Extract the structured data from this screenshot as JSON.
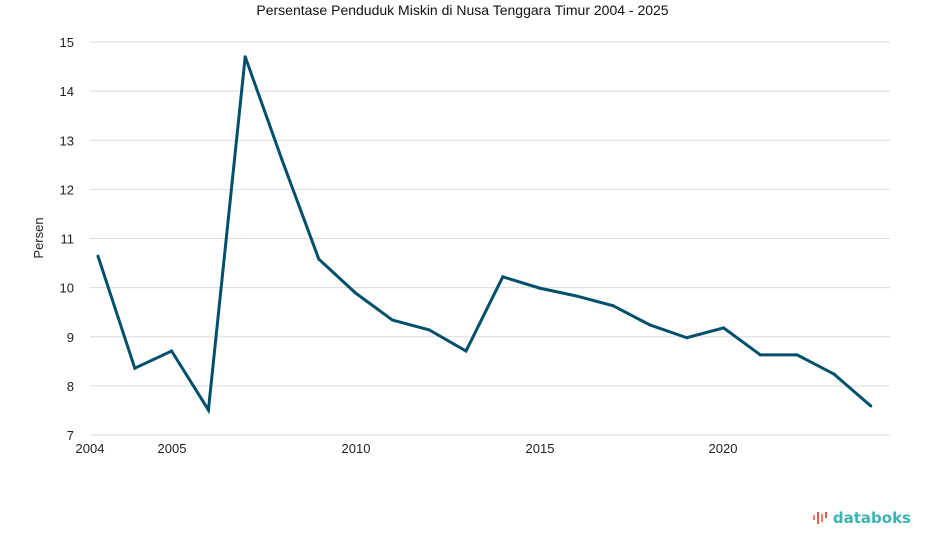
{
  "chart_data": {
    "type": "line",
    "title": "Persentase Penduduk Miskin di Nusa Tenggara Timur 2004 - 2025",
    "xlabel": "",
    "ylabel": "Persen",
    "ylim": [
      7,
      15
    ],
    "yticks": [
      "7",
      "8",
      "9",
      "10",
      "11",
      "12",
      "13",
      "14",
      "15"
    ],
    "xticks": [
      "2004",
      "2005",
      "2010",
      "2015",
      "2020"
    ],
    "grid": true,
    "legend": "none",
    "series": [
      {
        "name": "Persen",
        "color": "#004f6b",
        "x": [
          2004,
          2005,
          2006,
          2007,
          2008,
          2009,
          2010,
          2011,
          2012,
          2013,
          2014,
          2015,
          2016,
          2017,
          2018,
          2019,
          2020,
          2021,
          2022,
          2023,
          2024,
          2025
        ],
        "values": [
          10.64,
          8.36,
          8.71,
          7.51,
          14.7,
          12.6,
          10.58,
          9.89,
          9.34,
          9.14,
          8.71,
          10.22,
          9.99,
          9.83,
          9.63,
          9.24,
          8.98,
          9.18,
          8.63,
          8.63,
          8.24,
          7.59
        ]
      }
    ]
  },
  "brand": {
    "name": "databoks"
  }
}
